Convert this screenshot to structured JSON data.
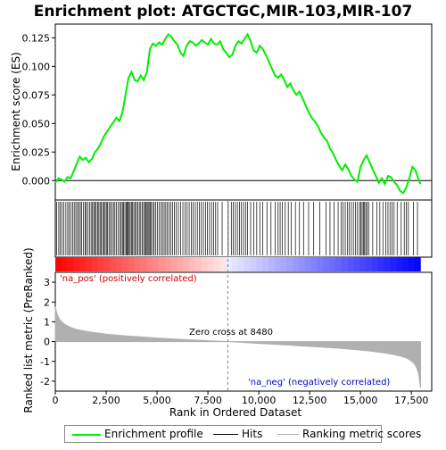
{
  "chart_data": {
    "type": "line",
    "title": "Enrichment plot: ATGCTGC,MIR-103,MIR-107",
    "es_panel": {
      "ylabel": "Enrichment score (ES)",
      "ylim": [
        -0.017,
        0.137
      ],
      "yticks": [
        0.0,
        0.025,
        0.05,
        0.075,
        0.1,
        0.125
      ],
      "ytick_labels": [
        "0.000",
        "0.025",
        "0.050",
        "0.075",
        "0.100",
        "0.125"
      ],
      "series": [
        {
          "name": "Enrichment profile",
          "color": "#00ee00",
          "x": [
            0,
            150,
            300,
            450,
            600,
            750,
            900,
            1050,
            1200,
            1350,
            1500,
            1650,
            1800,
            1950,
            2100,
            2250,
            2400,
            2550,
            2700,
            2850,
            3000,
            3150,
            3300,
            3450,
            3600,
            3750,
            3900,
            4050,
            4200,
            4350,
            4500,
            4650,
            4800,
            4950,
            5100,
            5250,
            5400,
            5550,
            5700,
            5850,
            6000,
            6150,
            6300,
            6450,
            6600,
            6750,
            6900,
            7050,
            7200,
            7350,
            7500,
            7650,
            7800,
            7950,
            8100,
            8250,
            8400,
            8550,
            8700,
            8850,
            9000,
            9150,
            9300,
            9450,
            9600,
            9750,
            9900,
            10050,
            10200,
            10350,
            10500,
            10650,
            10800,
            10950,
            11100,
            11250,
            11400,
            11550,
            11700,
            11850,
            12000,
            12150,
            12300,
            12450,
            12600,
            12750,
            12900,
            13050,
            13200,
            13350,
            13500,
            13650,
            13800,
            13950,
            14100,
            14250,
            14400,
            14550,
            14700,
            14850,
            15000,
            15150,
            15300,
            15450,
            15600,
            15750,
            15900,
            16050,
            16200,
            16350,
            16500,
            16650,
            16800,
            16950,
            17100,
            17250,
            17400,
            17550,
            17700,
            17850,
            17950
          ],
          "y": [
            -0.002,
            0.002,
            0.001,
            -0.001,
            0.003,
            0.002,
            0.008,
            0.015,
            0.021,
            0.018,
            0.02,
            0.016,
            0.019,
            0.025,
            0.028,
            0.033,
            0.039,
            0.043,
            0.047,
            0.051,
            0.055,
            0.052,
            0.06,
            0.075,
            0.09,
            0.095,
            0.088,
            0.087,
            0.092,
            0.088,
            0.095,
            0.115,
            0.12,
            0.118,
            0.121,
            0.119,
            0.124,
            0.128,
            0.126,
            0.122,
            0.119,
            0.112,
            0.109,
            0.118,
            0.122,
            0.121,
            0.118,
            0.12,
            0.123,
            0.121,
            0.119,
            0.124,
            0.12,
            0.119,
            0.122,
            0.115,
            0.112,
            0.108,
            0.11,
            0.118,
            0.122,
            0.12,
            0.124,
            0.128,
            0.122,
            0.114,
            0.112,
            0.118,
            0.115,
            0.11,
            0.104,
            0.098,
            0.092,
            0.09,
            0.093,
            0.088,
            0.082,
            0.085,
            0.079,
            0.075,
            0.078,
            0.072,
            0.066,
            0.06,
            0.055,
            0.052,
            0.048,
            0.042,
            0.038,
            0.035,
            0.028,
            0.024,
            0.018,
            0.013,
            0.009,
            0.014,
            0.01,
            0.004,
            0.001,
            -0.001,
            0.012,
            0.018,
            0.022,
            0.016,
            0.01,
            0.004,
            -0.002,
            0.002,
            -0.003,
            0.004,
            0.003,
            -0.001,
            -0.004,
            -0.009,
            -0.011,
            -0.006,
            0.002,
            0.012,
            0.009,
            0.001,
            -0.003
          ]
        }
      ]
    },
    "hits_panel": {
      "legend_label": "Hits",
      "positions": [
        60,
        170,
        240,
        330,
        420,
        520,
        610,
        680,
        760,
        850,
        930,
        1010,
        1090,
        1150,
        1230,
        1300,
        1380,
        1460,
        1520,
        1600,
        1680,
        1760,
        1830,
        1890,
        1950,
        2010,
        2080,
        2140,
        2200,
        2260,
        2330,
        2390,
        2450,
        2510,
        2570,
        2640,
        2710,
        2780,
        2860,
        2930,
        3010,
        3090,
        3170,
        3240,
        3300,
        3360,
        3420,
        3480,
        3530,
        3580,
        3630,
        3680,
        3740,
        3800,
        3860,
        3920,
        3990,
        4060,
        4130,
        4200,
        4270,
        4340,
        4400,
        4460,
        4510,
        4560,
        4610,
        4660,
        4720,
        4790,
        4860,
        4940,
        5020,
        5100,
        5190,
        5270,
        5350,
        5430,
        5510,
        5590,
        5670,
        5760,
        5850,
        5950,
        6050,
        6160,
        6270,
        6380,
        6480,
        6580,
        6680,
        6780,
        6880,
        6980,
        7080,
        7180,
        7280,
        7380,
        7480,
        7580,
        7680,
        7780,
        7880,
        7980,
        8200,
        8500,
        8650,
        8750,
        8850,
        8950,
        9050,
        9150,
        9250,
        9350,
        9450,
        9600,
        9750,
        9900,
        10050,
        10200,
        10400,
        10600,
        10800,
        10950,
        11050,
        11150,
        11300,
        11450,
        11600,
        11800,
        12000,
        12200,
        12450,
        12700,
        13000,
        13300,
        13500,
        13700,
        13900,
        14050,
        14150,
        14250,
        14350,
        14450,
        14550,
        14650,
        14750,
        14850,
        14950,
        15020,
        15080,
        15140,
        15200,
        15260,
        15330,
        15400,
        15600,
        15800,
        15950,
        16100,
        16250,
        16350,
        16450,
        16550,
        16650,
        16800,
        17000,
        17150,
        17250,
        17350,
        17600,
        17800
      ]
    },
    "rank_panel": {
      "ylabel": "Ranked list metric (PreRanked)",
      "ylim": [
        -2.5,
        3.5
      ],
      "yticks": [
        -2,
        -1,
        0,
        1,
        2,
        3
      ],
      "ytick_labels": [
        "-2",
        "-1",
        "0",
        "1",
        "2",
        "3"
      ],
      "legend_label": "Ranking metric scores",
      "zero_cross_label": "Zero cross at 8480",
      "zero_cross_at": 8480,
      "pos_label": "'na_pos' (positively correlated)",
      "neg_label": "'na_neg' (negatively correlated)",
      "curve": {
        "x": [
          0,
          50,
          100,
          200,
          300,
          500,
          750,
          1000,
          1500,
          2000,
          2500,
          3000,
          3500,
          4000,
          5000,
          6000,
          7000,
          8000,
          8480,
          9000,
          10000,
          11000,
          12000,
          13000,
          14000,
          15000,
          15500,
          16000,
          16500,
          17000,
          17300,
          17500,
          17650,
          17750,
          17850,
          17950
        ],
        "y": [
          1.75,
          1.55,
          1.35,
          1.15,
          1.0,
          0.85,
          0.72,
          0.62,
          0.52,
          0.44,
          0.38,
          0.33,
          0.29,
          0.25,
          0.18,
          0.12,
          0.07,
          0.02,
          0.0,
          -0.03,
          -0.09,
          -0.15,
          -0.21,
          -0.27,
          -0.34,
          -0.43,
          -0.48,
          -0.55,
          -0.63,
          -0.74,
          -0.85,
          -0.98,
          -1.12,
          -1.3,
          -1.6,
          -2.35
        ]
      }
    },
    "xaxis": {
      "xlabel": "Rank in Ordered Dataset",
      "xlim": [
        0,
        18500
      ],
      "xticks": [
        0,
        2500,
        5000,
        7500,
        10000,
        12500,
        15000,
        17500
      ],
      "xtick_labels": [
        "0",
        "2,500",
        "5,000",
        "7,500",
        "10,000",
        "12,500",
        "15,000",
        "17,500"
      ],
      "n_genes": 17950
    },
    "grid": false,
    "legend": {
      "placement": "bottom",
      "items": [
        "Enrichment profile",
        "Hits",
        "Ranking metric scores"
      ]
    },
    "colors": {
      "profile": "#00ee00",
      "hits": "#000000",
      "rank_fill": "#b0b0b0",
      "pos_text": "#cc0000",
      "neg_text": "#0000cc",
      "zero_line": "#808080"
    }
  }
}
